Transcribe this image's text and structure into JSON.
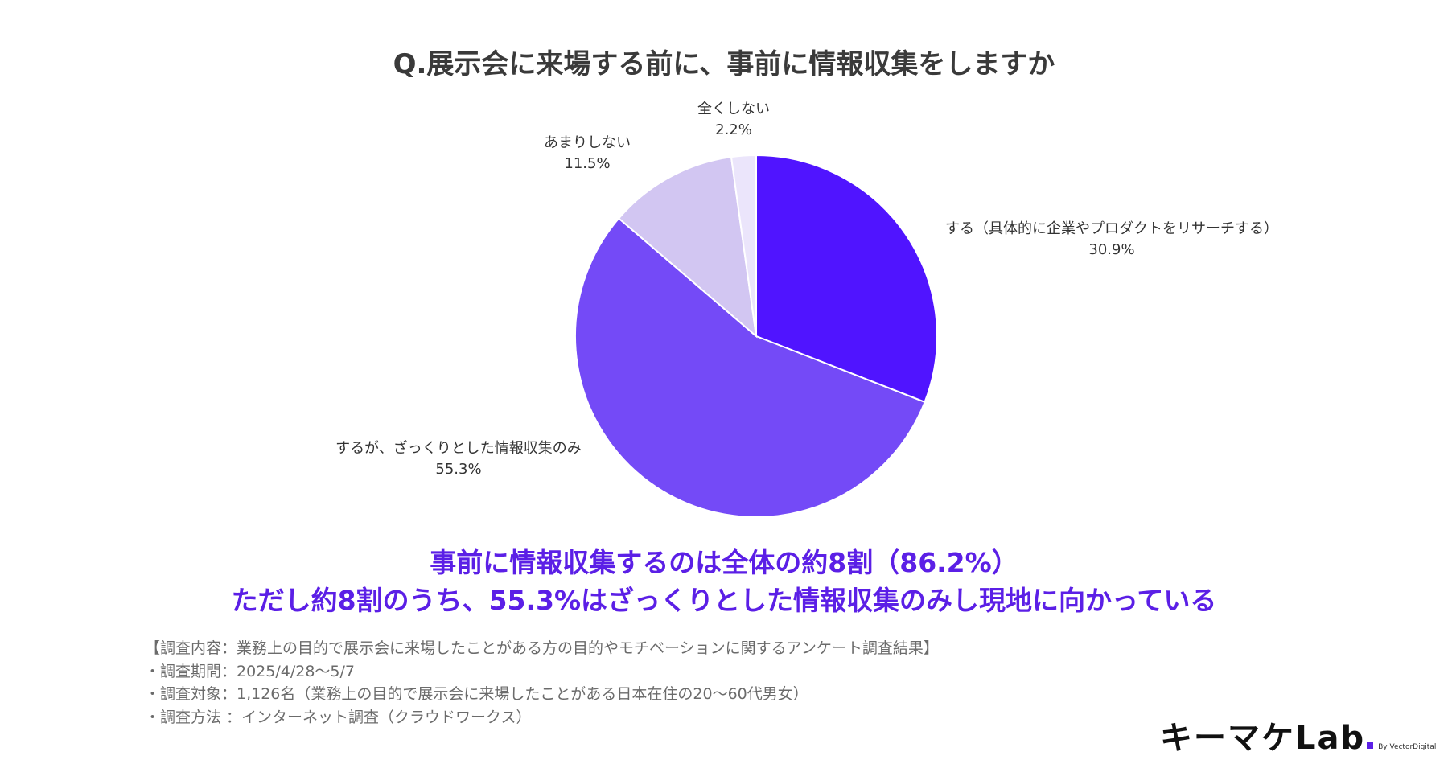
{
  "title": "Q.展示会に来場する前に、事前に情報収集をしますか",
  "chart_data": {
    "type": "pie",
    "title": "Q.展示会に来場する前に、事前に情報収集をしますか",
    "slices": [
      {
        "label": "する（具体的に企業やプロダクトをリサーチする）",
        "value": 30.9,
        "value_label": "30.9%",
        "color": "#5014ff"
      },
      {
        "label": "するが、ざっくりとした情報収集のみ",
        "value": 55.3,
        "value_label": "55.3%",
        "color": "#744af7"
      },
      {
        "label": "あまりしない",
        "value": 11.5,
        "value_label": "11.5%",
        "color": "#d2c6f2"
      },
      {
        "label": "全くしない",
        "value": 2.2,
        "value_label": "2.2%",
        "color": "#ebe5fb"
      }
    ],
    "start_angle": "12 o'clock",
    "direction": "clockwise"
  },
  "summary": {
    "line1": "事前に情報収集するのは全体の約8割（86.2%）",
    "line2": "ただし約8割のうち、55.3%はざっくりとした情報収集のみし現地に向かっている"
  },
  "notes": [
    "【調査内容：業務上の目的で展示会に来場したことがある方の目的やモチベーションに関するアンケート調査結果】",
    "・調査期間：2025/4/28〜5/7",
    "・調査対象：1,126名（業務上の目的で展示会に来場したことがある日本在住の20〜60代男女）",
    "・調査方法 ：インターネット調査（クラウドワークス）"
  ],
  "logo": {
    "text": "キーマケLab",
    "byline": "By VectorDigital",
    "accent_color": "#5b1fe6"
  },
  "colors": {
    "summary": "#5b1fe6"
  }
}
